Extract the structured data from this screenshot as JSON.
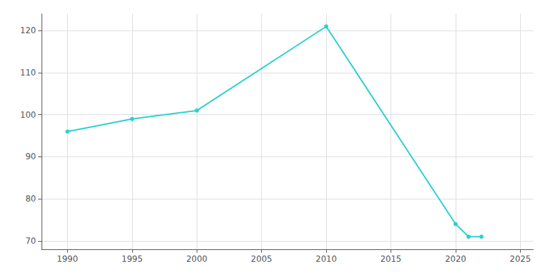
{
  "chart_data": {
    "type": "line",
    "x": [
      1990,
      1995,
      2000,
      2010,
      2020,
      2021,
      2022
    ],
    "values": [
      96,
      99,
      101,
      121,
      74,
      71,
      71
    ],
    "color": "#2dcfcf",
    "marker": "circle",
    "xlim": [
      1988,
      2026
    ],
    "ylim": [
      68,
      124
    ],
    "xticks": [
      1990,
      1995,
      2000,
      2005,
      2010,
      2015,
      2020,
      2025
    ],
    "yticks": [
      70,
      80,
      90,
      100,
      110,
      120
    ],
    "grid": true
  }
}
